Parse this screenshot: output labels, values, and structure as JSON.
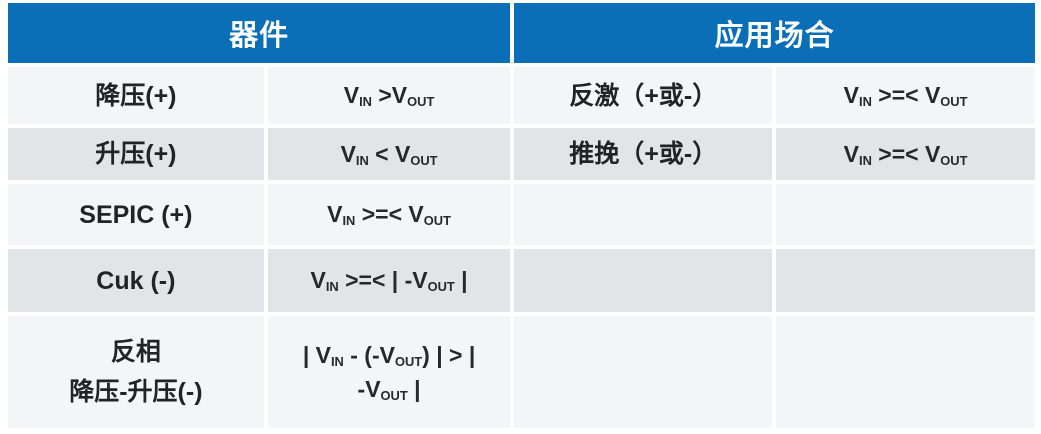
{
  "colors": {
    "header_bg": "#0a6fb6",
    "header_text": "#ffffff",
    "row_light": "#f4f5f7",
    "row_dark": "#e3e4e8",
    "body_text": "#26282c"
  },
  "table": {
    "headers": [
      {
        "label": "器件"
      },
      {
        "label": "应用场合"
      }
    ],
    "rows": [
      {
        "cells": [
          {
            "kind": "label",
            "lines": [
              "降压(+)"
            ]
          },
          {
            "kind": "formula",
            "lines": [
              "V~IN~ >V~OUT~"
            ]
          },
          {
            "kind": "label",
            "lines": [
              "反激（+或-）"
            ]
          },
          {
            "kind": "formula",
            "lines": [
              "V~IN~ >=< V~OUT~"
            ]
          }
        ]
      },
      {
        "cells": [
          {
            "kind": "label",
            "lines": [
              "升压(+)"
            ]
          },
          {
            "kind": "formula",
            "lines": [
              "V~IN~ < V~OUT~"
            ]
          },
          {
            "kind": "label",
            "lines": [
              "推挽（+或-）"
            ]
          },
          {
            "kind": "formula",
            "lines": [
              "V~IN~ >=< V~OUT~"
            ]
          }
        ]
      },
      {
        "cells": [
          {
            "kind": "label",
            "lines": [
              "SEPIC (+)"
            ]
          },
          {
            "kind": "formula",
            "lines": [
              "V~IN~ >=< V~OUT~"
            ]
          },
          {
            "kind": "empty",
            "lines": []
          },
          {
            "kind": "empty",
            "lines": []
          }
        ]
      },
      {
        "cells": [
          {
            "kind": "label",
            "lines": [
              "Cuk (-)"
            ]
          },
          {
            "kind": "formula",
            "lines": [
              "V~IN~ >=< | -V~OUT~ |"
            ]
          },
          {
            "kind": "empty",
            "lines": []
          },
          {
            "kind": "empty",
            "lines": []
          }
        ]
      },
      {
        "cells": [
          {
            "kind": "label",
            "lines": [
              "反相",
              "降压-升压(-)"
            ]
          },
          {
            "kind": "formula",
            "lines": [
              "| V~IN~ - (-V~OUT~) | > |",
              "-V~OUT~ |"
            ]
          },
          {
            "kind": "empty",
            "lines": []
          },
          {
            "kind": "empty",
            "lines": []
          }
        ]
      }
    ]
  }
}
